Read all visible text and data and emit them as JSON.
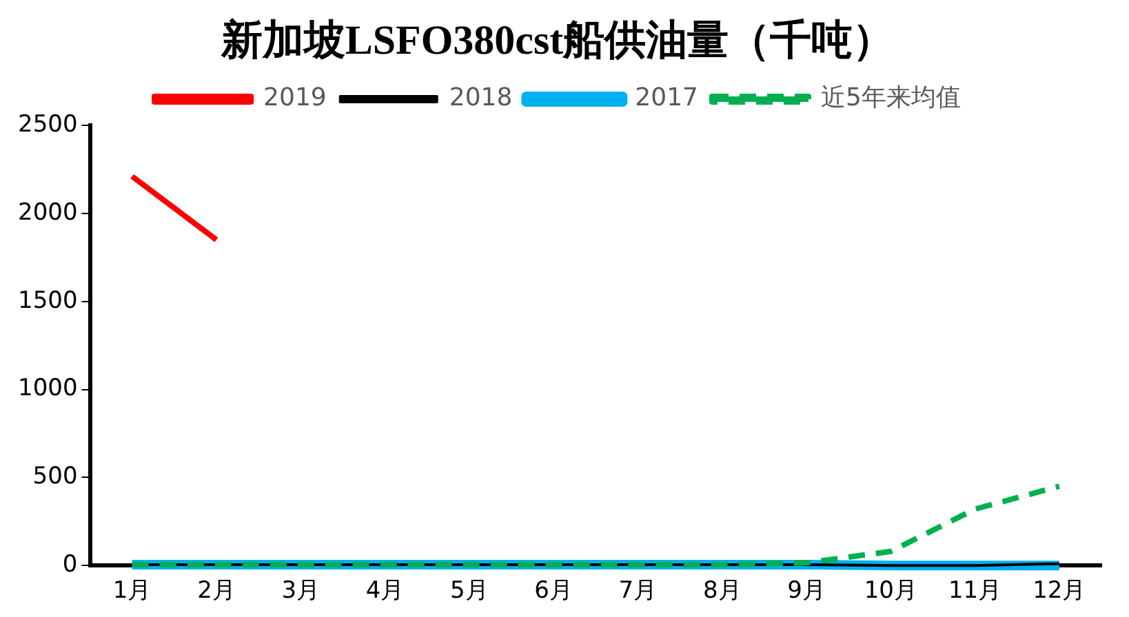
{
  "chart_data": {
    "type": "line",
    "title": "新加坡LSFO380cst船供油量（千吨）",
    "categories": [
      "1月",
      "2月",
      "3月",
      "4月",
      "5月",
      "6月",
      "7月",
      "8月",
      "9月",
      "10月",
      "11月",
      "12月"
    ],
    "series": [
      {
        "name": "2019",
        "color": "#ff0000",
        "values": [
          2210,
          1850,
          null,
          null,
          null,
          null,
          null,
          null,
          null,
          null,
          null,
          null
        ]
      },
      {
        "name": "2018",
        "color": "#000000",
        "values": [
          5,
          5,
          5,
          5,
          5,
          5,
          5,
          5,
          5,
          0,
          0,
          10
        ]
      },
      {
        "name": "2017",
        "color": "#00b0f0",
        "values": [
          5,
          5,
          5,
          5,
          5,
          5,
          5,
          5,
          5,
          0,
          0,
          0
        ]
      },
      {
        "name": "近5年来均值",
        "color": "#00b050",
        "line_style": "dashed",
        "values": [
          5,
          5,
          5,
          5,
          5,
          5,
          5,
          5,
          15,
          80,
          320,
          450
        ]
      }
    ],
    "ylim": [
      0,
      2500
    ],
    "yticks": [
      0,
      500,
      1000,
      1500,
      2000,
      2500
    ],
    "grid": false,
    "legend": "top",
    "marker": "none"
  }
}
